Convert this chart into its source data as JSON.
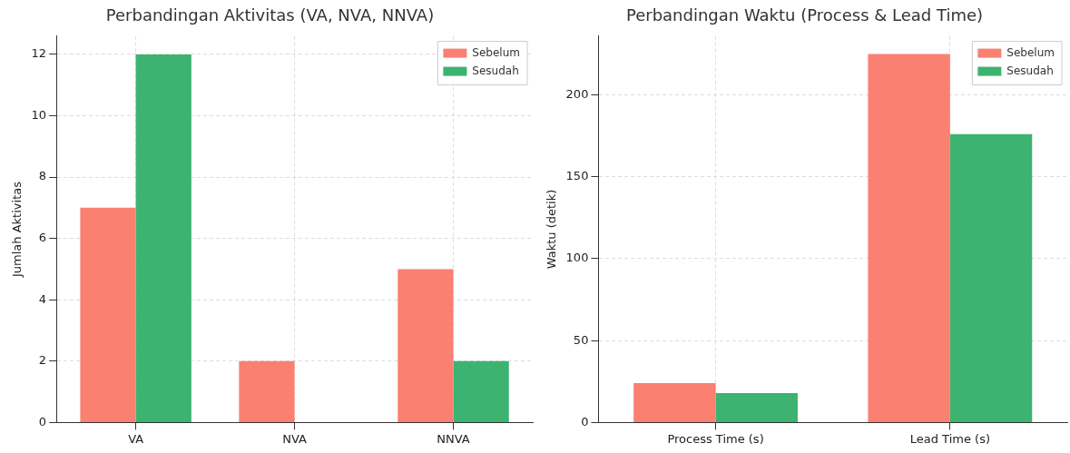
{
  "chart_data": [
    {
      "type": "bar",
      "title": "Perbandingan Aktivitas (VA, NVA, NNVA)",
      "ylabel": "Jumlah Aktivitas",
      "categories": [
        "VA",
        "NVA",
        "NNVA"
      ],
      "series": [
        {
          "name": "Sebelum",
          "color": "#fa8072",
          "values": [
            7,
            2,
            5
          ]
        },
        {
          "name": "Sesudah",
          "color": "#3cb371",
          "values": [
            12,
            0,
            2
          ]
        }
      ],
      "ylim": [
        0,
        12.6
      ],
      "yticks": [
        0,
        2,
        4,
        6,
        8,
        10,
        12
      ],
      "grid": true,
      "legend": "top right"
    },
    {
      "type": "bar",
      "title": "Perbandingan Waktu (Process & Lead Time)",
      "ylabel": "Waktu (detik)",
      "categories": [
        "Process Time (s)",
        "Lead Time (s)"
      ],
      "series": [
        {
          "name": "Sebelum",
          "color": "#fa8072",
          "values": [
            24,
            225
          ]
        },
        {
          "name": "Sesudah",
          "color": "#3cb371",
          "values": [
            18,
            176
          ]
        }
      ],
      "ylim": [
        0,
        236
      ],
      "yticks": [
        0,
        50,
        100,
        150,
        200
      ],
      "grid": true,
      "legend": "top right"
    }
  ]
}
